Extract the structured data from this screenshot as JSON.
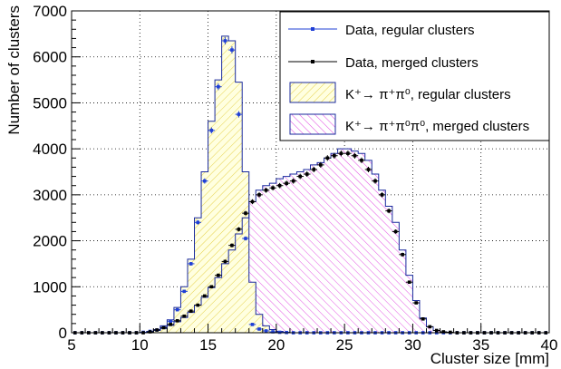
{
  "chart_data": {
    "type": "histogram",
    "xlabel": "Cluster size [mm]",
    "ylabel": "Number of clusters",
    "xlim": [
      5,
      40
    ],
    "ylim": [
      0,
      7000
    ],
    "x_ticks": [
      5,
      10,
      15,
      20,
      25,
      30,
      35,
      40
    ],
    "y_ticks": [
      0,
      1000,
      2000,
      3000,
      4000,
      5000,
      6000,
      7000
    ],
    "grid": true,
    "legend_position": "top-right",
    "bin_width": 0.5,
    "bin_centers": [
      5.25,
      5.75,
      6.25,
      6.75,
      7.25,
      7.75,
      8.25,
      8.75,
      9.25,
      9.75,
      10.25,
      10.75,
      11.25,
      11.75,
      12.25,
      12.75,
      13.25,
      13.75,
      14.25,
      14.75,
      15.25,
      15.75,
      16.25,
      16.75,
      17.25,
      17.75,
      18.25,
      18.75,
      19.25,
      19.75,
      20.25,
      20.75,
      21.25,
      21.75,
      22.25,
      22.75,
      23.25,
      23.75,
      24.25,
      24.75,
      25.25,
      25.75,
      26.25,
      26.75,
      27.25,
      27.75,
      28.25,
      28.75,
      29.25,
      29.75,
      30.25,
      30.75,
      31.25,
      31.75,
      32.25,
      32.75,
      33.25,
      33.75,
      34.25,
      34.75,
      35.25,
      35.75,
      36.25,
      36.75,
      37.25,
      37.75,
      38.25,
      38.75,
      39.25,
      39.75
    ],
    "series": [
      {
        "name": "Data, regular clusters",
        "kind": "points",
        "color": "#1f3fd6",
        "values": [
          0,
          0,
          0,
          0,
          0,
          0,
          0,
          0,
          0,
          0,
          10,
          30,
          60,
          120,
          250,
          500,
          900,
          1500,
          2400,
          3300,
          4400,
          5350,
          6350,
          6150,
          4750,
          2050,
          180,
          80,
          40,
          20,
          10,
          5,
          0,
          0,
          0,
          0,
          0,
          0,
          0,
          0,
          0,
          0,
          0,
          0,
          0,
          0,
          0,
          0,
          0,
          0,
          0,
          0,
          0,
          0,
          0,
          0,
          0,
          0,
          0,
          0,
          0,
          0,
          0,
          0,
          0,
          0,
          0,
          0,
          0,
          0
        ]
      },
      {
        "name": "Data, merged clusters",
        "kind": "points",
        "color": "#000000",
        "values": [
          0,
          0,
          0,
          0,
          0,
          0,
          0,
          0,
          0,
          0,
          0,
          20,
          60,
          110,
          180,
          260,
          360,
          470,
          600,
          800,
          1000,
          1250,
          1550,
          1900,
          2250,
          2600,
          2850,
          3000,
          3100,
          3150,
          3200,
          3250,
          3300,
          3400,
          3450,
          3550,
          3650,
          3800,
          3850,
          3900,
          3900,
          3850,
          3750,
          3550,
          3300,
          3000,
          2650,
          2200,
          1700,
          1100,
          650,
          300,
          130,
          50,
          20,
          10,
          0,
          0,
          0,
          0,
          0,
          0,
          0,
          0,
          0,
          0,
          0,
          0,
          0,
          0
        ]
      },
      {
        "name": "K⁺→ π⁺π⁰, regular clusters",
        "kind": "filled-histogram",
        "color": "#ffff99",
        "hatch": "yellow-diagonal",
        "values": [
          0,
          0,
          0,
          0,
          0,
          0,
          0,
          0,
          0,
          0,
          10,
          30,
          70,
          150,
          280,
          550,
          1000,
          1600,
          2500,
          3500,
          4600,
          5500,
          6450,
          6350,
          5450,
          3500,
          1100,
          400,
          150,
          70,
          30,
          10,
          0,
          0,
          0,
          0,
          0,
          0,
          0,
          0,
          0,
          0,
          0,
          0,
          0,
          0,
          0,
          0,
          0,
          0,
          0,
          0,
          0,
          0,
          0,
          0,
          0,
          0,
          0,
          0,
          0,
          0,
          0,
          0,
          0,
          0,
          0,
          0,
          0,
          0
        ]
      },
      {
        "name": "K⁺→ π⁺π⁰π⁰, merged clusters",
        "kind": "filled-histogram",
        "color": "#ff00ff",
        "hatch": "magenta-diagonal",
        "values": [
          0,
          0,
          0,
          0,
          0,
          0,
          0,
          0,
          0,
          0,
          0,
          20,
          50,
          90,
          160,
          240,
          330,
          440,
          600,
          770,
          980,
          1200,
          1500,
          1800,
          2150,
          2500,
          2850,
          3100,
          3200,
          3250,
          3350,
          3400,
          3450,
          3500,
          3550,
          3650,
          3700,
          3800,
          3900,
          4000,
          4000,
          3950,
          3900,
          3750,
          3450,
          3100,
          2750,
          2400,
          1800,
          1250,
          700,
          320,
          130,
          50,
          20,
          10,
          0,
          0,
          0,
          0,
          0,
          0,
          0,
          0,
          0,
          0,
          0,
          0,
          0,
          0
        ]
      }
    ]
  }
}
